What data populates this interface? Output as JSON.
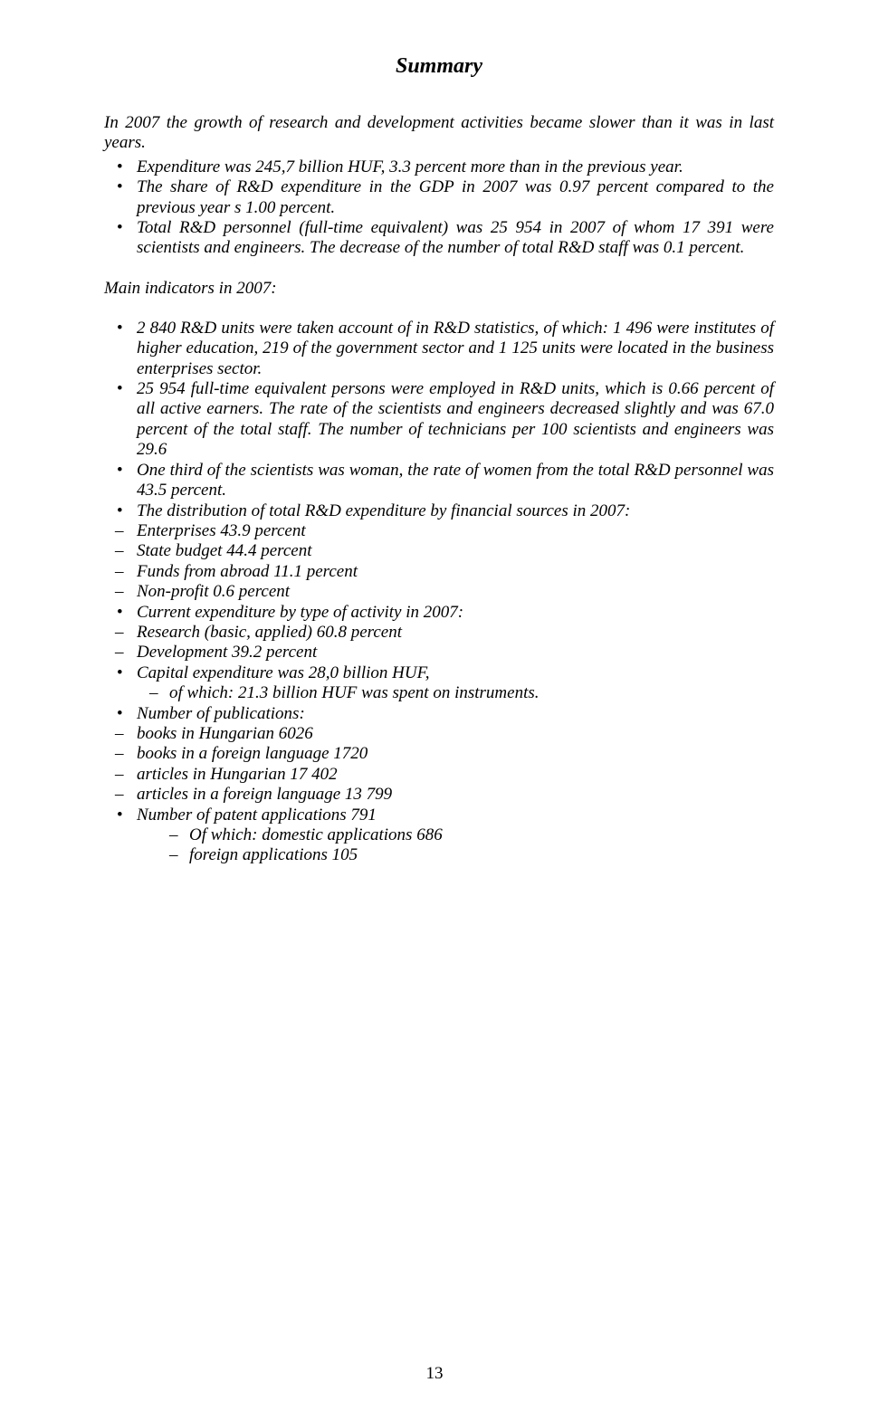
{
  "title": "Summary",
  "intro": "In 2007 the growth of research and development activities became slower than it was in last years.",
  "top_bullets": [
    "Expenditure was 245,7 billion HUF, 3.3 percent more than in the previous year.",
    "The share of R&D expenditure in the GDP in 2007 was 0.97 percent compared to the previous year s 1.00 percent.",
    "Total R&D personnel (full-time equivalent) was 25 954 in 2007 of whom 17 391 were scientists and engineers. The decrease of the number of total R&D staff was 0.1 percent."
  ],
  "main_heading": "Main indicators in 2007:",
  "items": [
    {
      "marker": "bullet",
      "text": "2 840 R&D units were taken account of in R&D statistics, of which: 1 496 were institutes of higher education, 219 of the government sector and 1 125 units were located in the business enterprises sector."
    },
    {
      "marker": "bullet",
      "text": "25 954 full-time equivalent persons were employed in R&D units, which is 0.66 percent of all active earners. The rate of the scientists and engineers decreased slightly and was 67.0 percent of the total staff. The number of technicians per 100 scientists and engineers was 29.6"
    },
    {
      "marker": "bullet",
      "text": "One third of the scientists was woman, the rate of women from the total R&D personnel was 43.5 percent."
    },
    {
      "marker": "bullet",
      "text": "The distribution of total R&D expenditure by financial sources in 2007:"
    },
    {
      "marker": "dash",
      "text": "Enterprises 43.9 percent"
    },
    {
      "marker": "dash",
      "text": "State budget 44.4 percent"
    },
    {
      "marker": "dash",
      "text": "Funds from abroad 11.1 percent"
    },
    {
      "marker": "dash",
      "text": "Non-profit 0.6 percent"
    },
    {
      "marker": "bullet",
      "text": "Current expenditure by type of activity in 2007:"
    },
    {
      "marker": "dash",
      "text": "Research (basic, applied) 60.8 percent"
    },
    {
      "marker": "dash",
      "text": "Development 39.2 percent"
    },
    {
      "marker": "bullet",
      "text": "Capital expenditure was 28,0 billion HUF,"
    },
    {
      "marker": "subdash",
      "text": "of which: 21.3 billion HUF was spent on instruments."
    },
    {
      "marker": "bullet",
      "text": "Number of publications:"
    },
    {
      "marker": "dash",
      "text": "books in Hungarian 6026"
    },
    {
      "marker": "dash",
      "text": "books in a foreign language 1720"
    },
    {
      "marker": "dash",
      "text": "articles in Hungarian 17 402"
    },
    {
      "marker": "dash",
      "text": "articles in a foreign language 13 799"
    },
    {
      "marker": "bullet",
      "text": "Number of patent applications 791"
    },
    {
      "marker": "subdash2",
      "text": "Of which: domestic applications 686"
    },
    {
      "marker": "subdash2",
      "text": "foreign applications 105"
    }
  ],
  "page_number": "13"
}
